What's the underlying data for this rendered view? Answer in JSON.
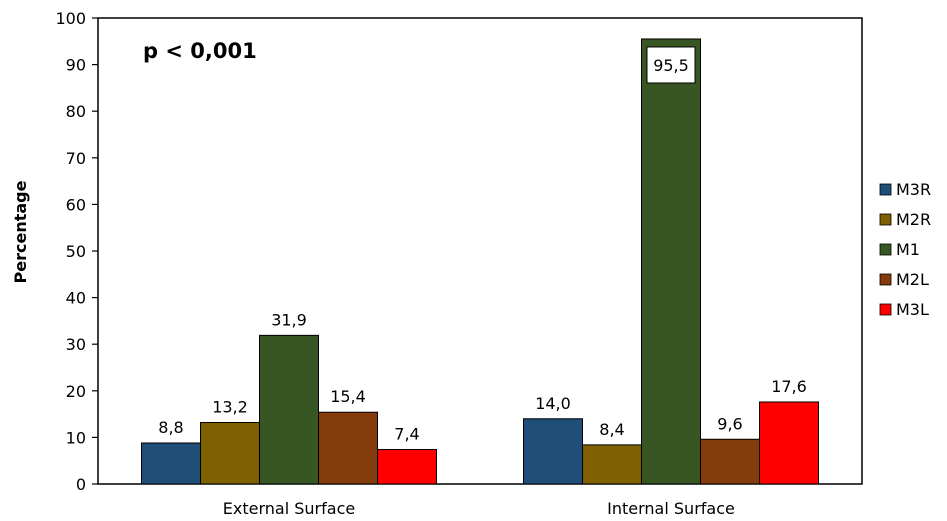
{
  "chart_data": {
    "type": "bar",
    "categories": [
      "External Surface",
      "Internal Surface"
    ],
    "series": [
      {
        "name": "M3R",
        "color": "#1f4e79",
        "values": [
          8.8,
          14.0
        ],
        "labels": [
          "8,8",
          "14,0"
        ]
      },
      {
        "name": "M2R",
        "color": "#7f6000",
        "values": [
          13.2,
          8.4
        ],
        "labels": [
          "13,2",
          "8,4"
        ]
      },
      {
        "name": "M1",
        "color": "#375623",
        "values": [
          31.9,
          95.5
        ],
        "labels": [
          "31,9",
          "95,5"
        ]
      },
      {
        "name": "M2L",
        "color": "#843c0c",
        "values": [
          15.4,
          9.6
        ],
        "labels": [
          "15,4",
          "9,6"
        ]
      },
      {
        "name": "M3L",
        "color": "#ff0000",
        "values": [
          7.4,
          17.6
        ],
        "labels": [
          "7,4",
          "17,6"
        ]
      }
    ],
    "ylabel": "Percentage",
    "xlabel": "",
    "ylim": [
      0,
      100
    ],
    "yticks": [
      "0",
      "10",
      "20",
      "30",
      "40",
      "50",
      "60",
      "70",
      "80",
      "90",
      "100"
    ],
    "annotation": "p < 0,001",
    "grid": false,
    "legend": "right"
  }
}
